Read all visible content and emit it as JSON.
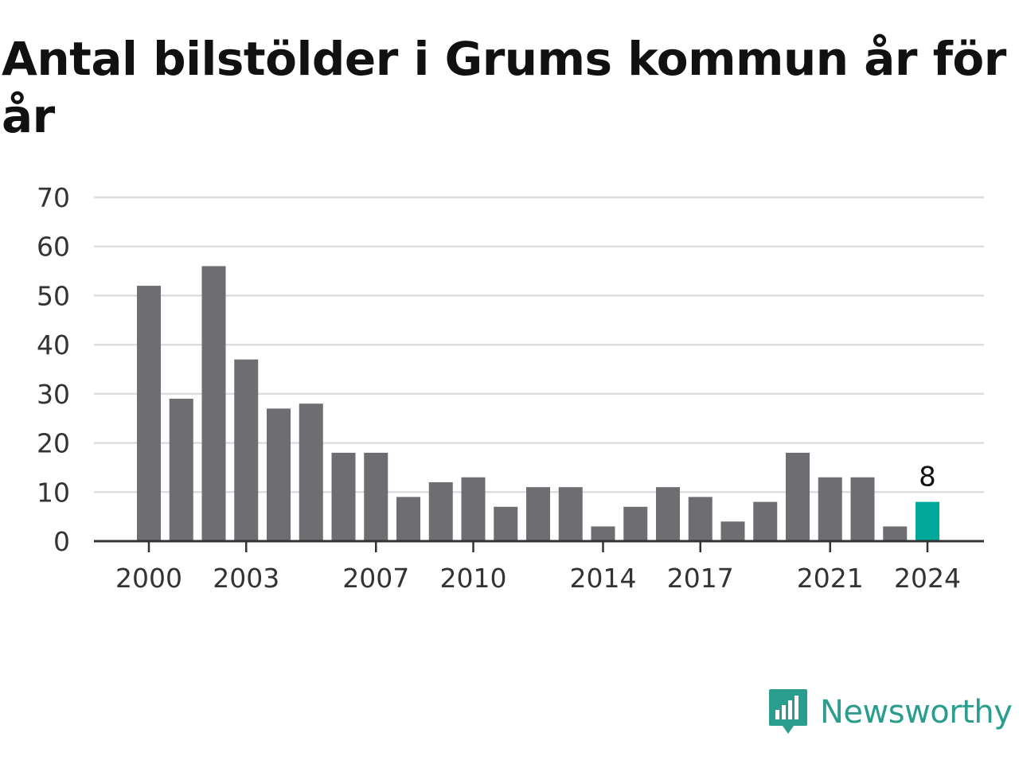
{
  "chart_data": {
    "type": "bar",
    "title": "Antal bilstölder i Grums kommun år för år",
    "categories": [
      "2000",
      "2001",
      "2002",
      "2003",
      "2004",
      "2005",
      "2006",
      "2007",
      "2008",
      "2009",
      "2010",
      "2011",
      "2012",
      "2013",
      "2014",
      "2015",
      "2016",
      "2017",
      "2018",
      "2019",
      "2020",
      "2021",
      "2022",
      "2023",
      "2024"
    ],
    "values": [
      52,
      29,
      56,
      37,
      27,
      28,
      18,
      18,
      9,
      12,
      13,
      7,
      11,
      11,
      3,
      7,
      11,
      9,
      4,
      8,
      18,
      13,
      13,
      3,
      8
    ],
    "x_tick_labels": [
      "2000",
      "2003",
      "2007",
      "2010",
      "2014",
      "2017",
      "2021",
      "2024"
    ],
    "y_ticks": [
      0,
      10,
      20,
      30,
      40,
      50,
      60,
      70
    ],
    "ylim": [
      0,
      70
    ],
    "xlabel": "",
    "ylabel": "",
    "grid": true,
    "highlight": {
      "category": "2024",
      "label": "8"
    },
    "colors": {
      "bar": "#6e6d72",
      "highlight": "#00a89a",
      "grid": "#dddddd",
      "axis": "#333333"
    }
  },
  "brand": {
    "name": "Newsworthy",
    "icon": "newsworthy-logo-icon",
    "color": "#2a9d8f"
  }
}
